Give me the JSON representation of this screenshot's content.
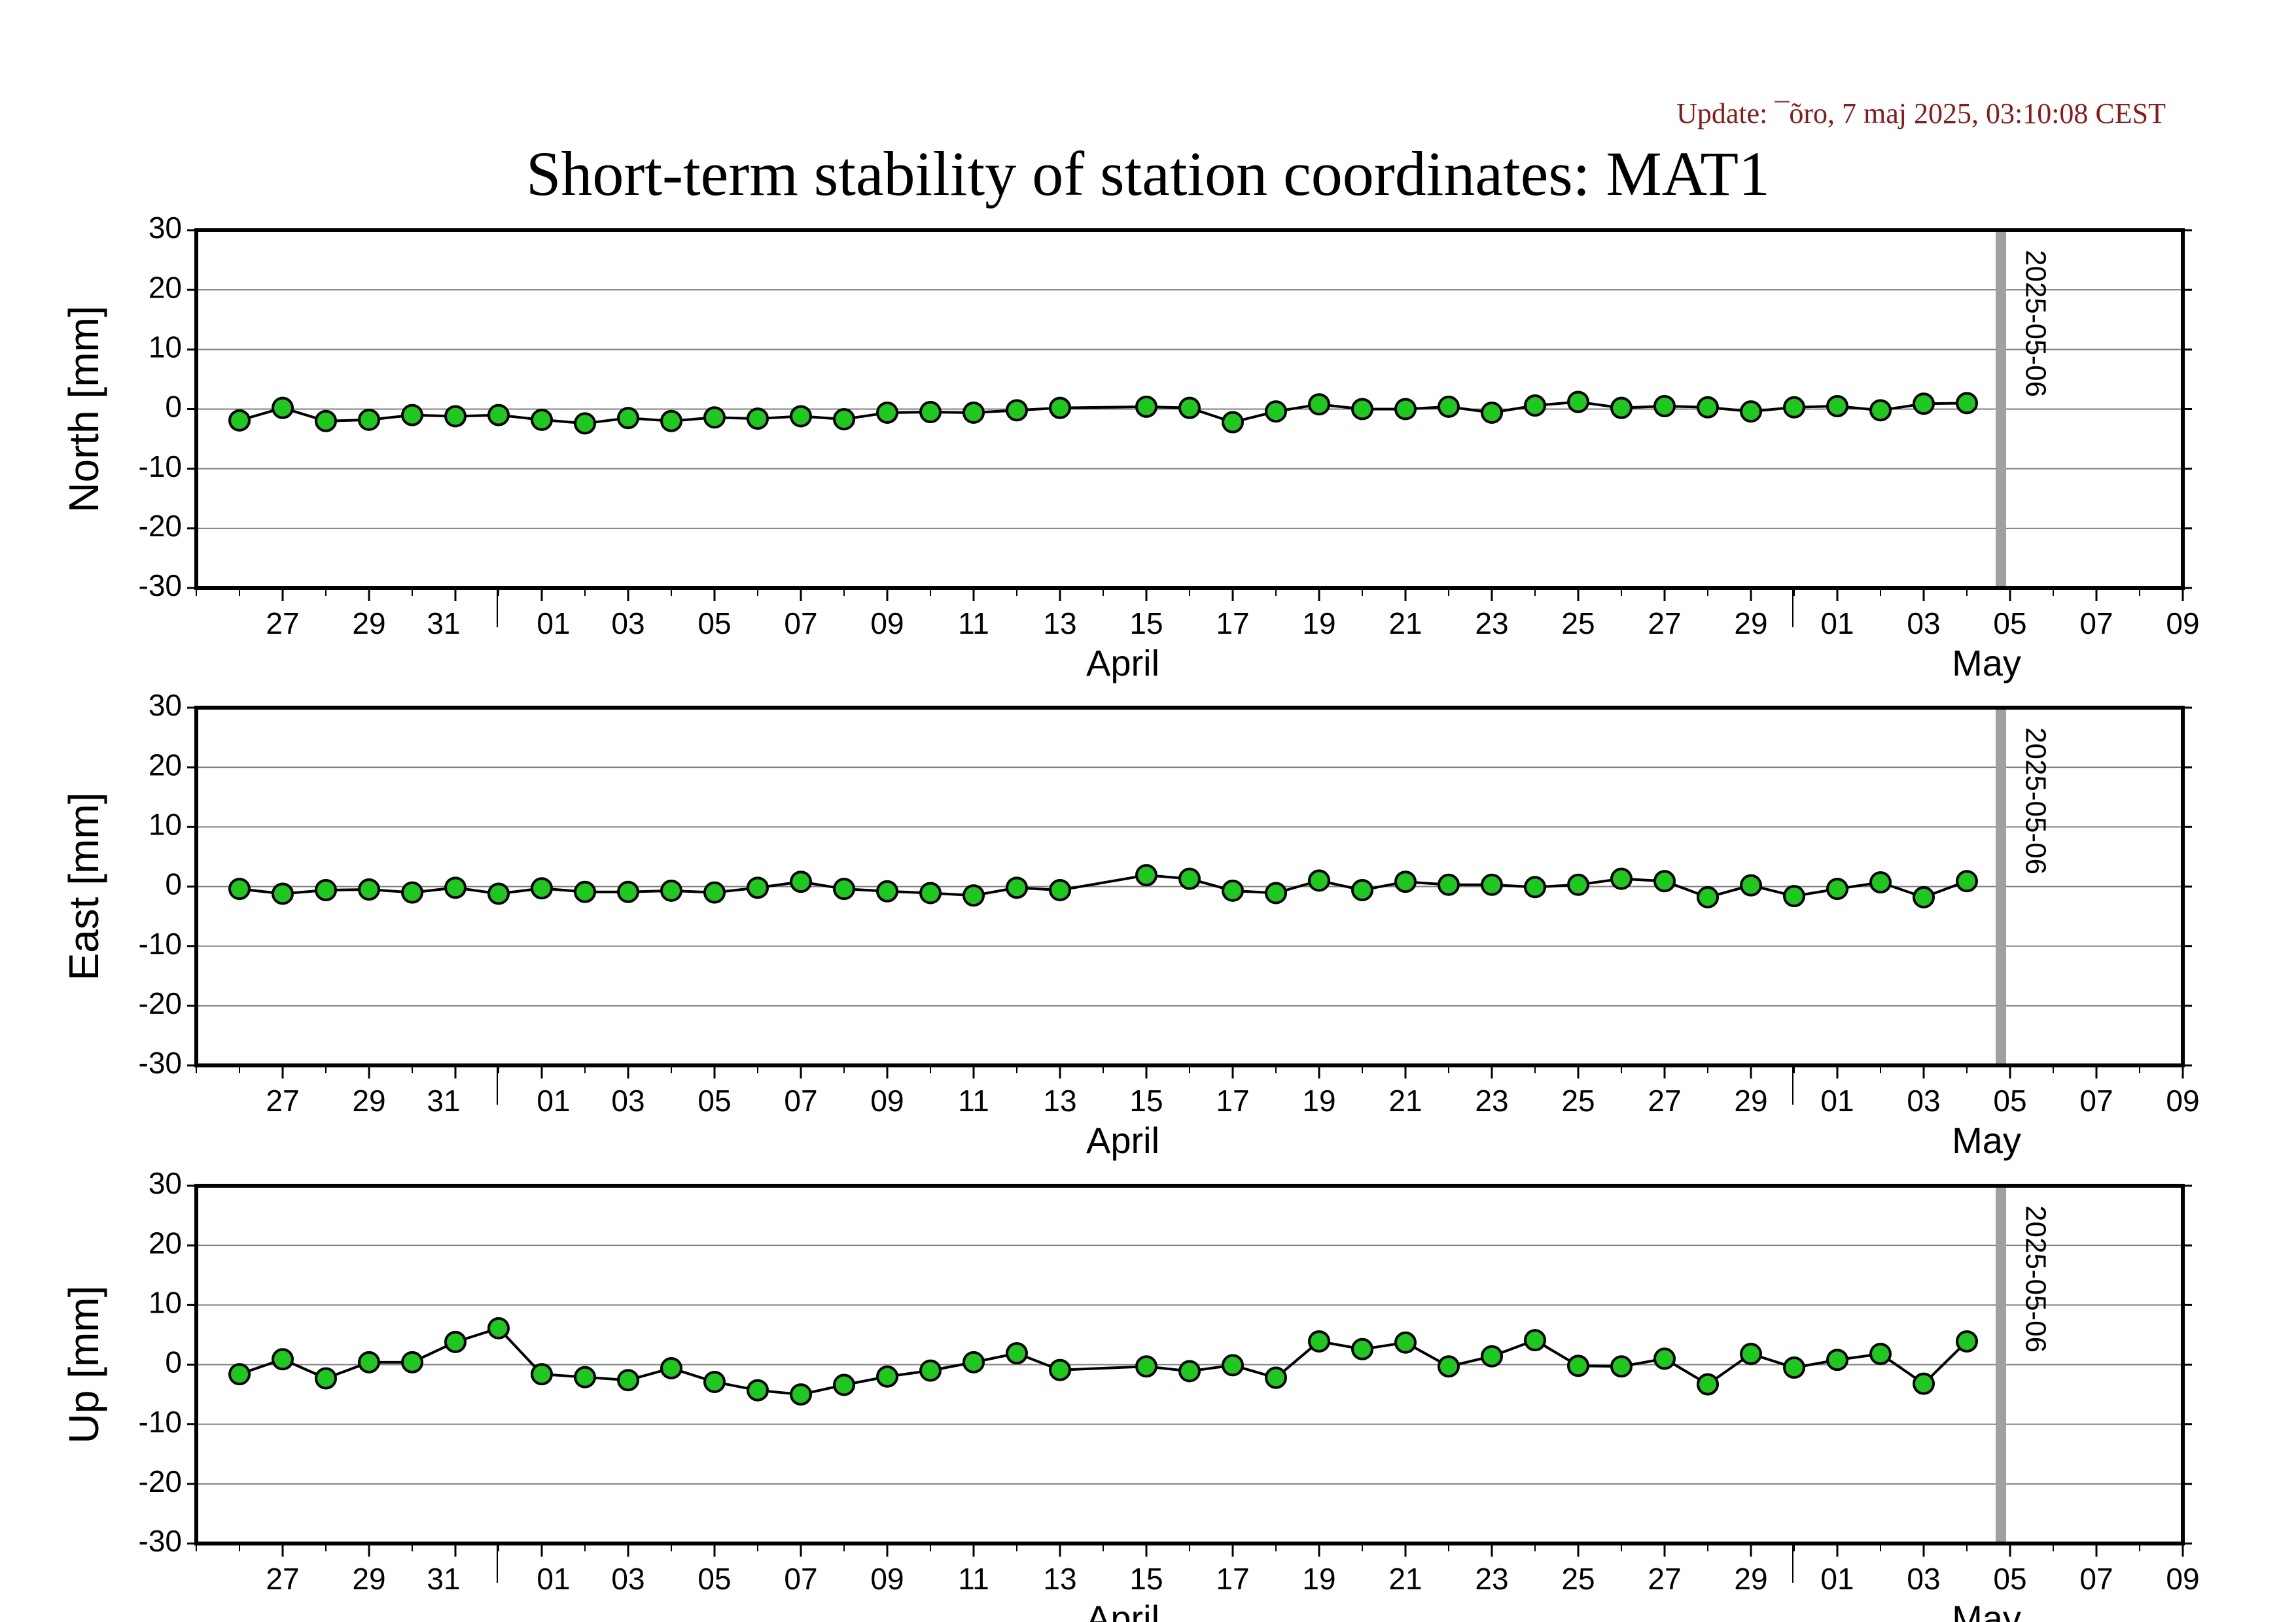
{
  "update_text": "Update: ¯õro, 7 maj 2025, 03:10:08 CEST",
  "chart_title": "Short-term stability of station coordinates: MAT1",
  "colors": {
    "marker_fill": "#1ec81e",
    "marker_edge": "#000000",
    "line": "#000000",
    "grid": "#7f7f7f",
    "epoch_line": "#a0a0a0",
    "update_text": "#8b1a1a"
  },
  "chart_data": [
    {
      "type": "line",
      "ylabel": "North [mm]",
      "ylim": [
        -30,
        30
      ],
      "yticks": [
        30,
        20,
        10,
        0,
        -10,
        -20,
        -30
      ],
      "xlim": [
        "2025-03-25",
        "2025-05-10"
      ],
      "x_tick_days": [
        "27",
        "29",
        "31",
        "01",
        "03",
        "05",
        "07",
        "09",
        "11",
        "13",
        "15",
        "17",
        "19",
        "21",
        "23",
        "25",
        "27",
        "29",
        "01",
        "03",
        "05",
        "07",
        "09"
      ],
      "month_labels": [
        "April",
        "May"
      ],
      "grid": "horizontal",
      "vertical_marker": {
        "date": "2025-05-06",
        "label": "2025-05-06"
      },
      "x": [
        "2025-03-26",
        "2025-03-27",
        "2025-03-28",
        "2025-03-29",
        "2025-03-30",
        "2025-03-31",
        "2025-04-01",
        "2025-04-02",
        "2025-04-03",
        "2025-04-04",
        "2025-04-05",
        "2025-04-06",
        "2025-04-07",
        "2025-04-08",
        "2025-04-09",
        "2025-04-10",
        "2025-04-11",
        "2025-04-12",
        "2025-04-13",
        "2025-04-14",
        "2025-04-16",
        "2025-04-17",
        "2025-04-18",
        "2025-04-19",
        "2025-04-20",
        "2025-04-21",
        "2025-04-22",
        "2025-04-23",
        "2025-04-24",
        "2025-04-25",
        "2025-04-26",
        "2025-04-27",
        "2025-04-28",
        "2025-04-29",
        "2025-04-30",
        "2025-05-01",
        "2025-05-02",
        "2025-05-03",
        "2025-05-04",
        "2025-05-05"
      ],
      "values": [
        -1.9,
        0.2,
        -2.0,
        -1.8,
        -1.0,
        -1.2,
        -1.0,
        -1.8,
        -2.4,
        -1.5,
        -2.0,
        -1.4,
        -1.6,
        -1.2,
        -1.7,
        -0.6,
        -0.5,
        -0.6,
        -0.2,
        0.2,
        0.4,
        0.2,
        -2.2,
        -0.4,
        0.8,
        0.0,
        0.0,
        0.4,
        -0.6,
        0.6,
        1.2,
        0.2,
        0.5,
        0.3,
        -0.4,
        0.3,
        0.5,
        -0.2,
        0.9,
        1.0
      ]
    },
    {
      "type": "line",
      "ylabel": "East [mm]",
      "ylim": [
        -30,
        30
      ],
      "yticks": [
        30,
        20,
        10,
        0,
        -10,
        -20,
        -30
      ],
      "xlim": [
        "2025-03-25",
        "2025-05-10"
      ],
      "x_tick_days": [
        "27",
        "29",
        "31",
        "01",
        "03",
        "05",
        "07",
        "09",
        "11",
        "13",
        "15",
        "17",
        "19",
        "21",
        "23",
        "25",
        "27",
        "29",
        "01",
        "03",
        "05",
        "07",
        "09"
      ],
      "month_labels": [
        "April",
        "May"
      ],
      "grid": "horizontal",
      "vertical_marker": {
        "date": "2025-05-06",
        "label": "2025-05-06"
      },
      "x": [
        "2025-03-26",
        "2025-03-27",
        "2025-03-28",
        "2025-03-29",
        "2025-03-30",
        "2025-03-31",
        "2025-04-01",
        "2025-04-02",
        "2025-04-03",
        "2025-04-04",
        "2025-04-05",
        "2025-04-06",
        "2025-04-07",
        "2025-04-08",
        "2025-04-09",
        "2025-04-10",
        "2025-04-11",
        "2025-04-12",
        "2025-04-13",
        "2025-04-14",
        "2025-04-16",
        "2025-04-17",
        "2025-04-18",
        "2025-04-19",
        "2025-04-20",
        "2025-04-21",
        "2025-04-22",
        "2025-04-23",
        "2025-04-24",
        "2025-04-25",
        "2025-04-26",
        "2025-04-27",
        "2025-04-28",
        "2025-04-29",
        "2025-04-30",
        "2025-05-01",
        "2025-05-02",
        "2025-05-03",
        "2025-05-04",
        "2025-05-05"
      ],
      "values": [
        -0.4,
        -1.2,
        -0.6,
        -0.5,
        -1.0,
        -0.2,
        -1.2,
        -0.3,
        -0.9,
        -0.9,
        -0.7,
        -1.0,
        -0.2,
        0.8,
        -0.4,
        -0.8,
        -1.1,
        -1.5,
        -0.2,
        -0.6,
        1.9,
        1.3,
        -0.7,
        -1.1,
        1.0,
        -0.6,
        0.8,
        0.3,
        0.3,
        -0.1,
        0.3,
        1.3,
        0.9,
        -1.8,
        0.2,
        -1.6,
        -0.4,
        0.7,
        -1.8,
        0.9
      ]
    },
    {
      "type": "line",
      "ylabel": "Up [mm]",
      "ylim": [
        -30,
        30
      ],
      "yticks": [
        30,
        20,
        10,
        0,
        -10,
        -20,
        -30
      ],
      "xlim": [
        "2025-03-25",
        "2025-05-10"
      ],
      "x_tick_days": [
        "27",
        "29",
        "31",
        "01",
        "03",
        "05",
        "07",
        "09",
        "11",
        "13",
        "15",
        "17",
        "19",
        "21",
        "23",
        "25",
        "27",
        "29",
        "01",
        "03",
        "05",
        "07",
        "09"
      ],
      "month_labels": [
        "April",
        "May"
      ],
      "grid": "horizontal",
      "vertical_marker": {
        "date": "2025-05-06",
        "label": "2025-05-06"
      },
      "x": [
        "2025-03-26",
        "2025-03-27",
        "2025-03-28",
        "2025-03-29",
        "2025-03-30",
        "2025-03-31",
        "2025-04-01",
        "2025-04-02",
        "2025-04-03",
        "2025-04-04",
        "2025-04-05",
        "2025-04-06",
        "2025-04-07",
        "2025-04-08",
        "2025-04-09",
        "2025-04-10",
        "2025-04-11",
        "2025-04-12",
        "2025-04-13",
        "2025-04-14",
        "2025-04-16",
        "2025-04-17",
        "2025-04-18",
        "2025-04-19",
        "2025-04-20",
        "2025-04-21",
        "2025-04-22",
        "2025-04-23",
        "2025-04-24",
        "2025-04-25",
        "2025-04-26",
        "2025-04-27",
        "2025-04-28",
        "2025-04-29",
        "2025-04-30",
        "2025-05-01",
        "2025-05-02",
        "2025-05-03",
        "2025-05-04",
        "2025-05-05"
      ],
      "values": [
        -1.6,
        0.9,
        -2.3,
        0.4,
        0.4,
        3.8,
        6.1,
        -1.6,
        -2.1,
        -2.6,
        -0.6,
        -2.9,
        -4.3,
        -5.0,
        -3.4,
        -2.0,
        -1.0,
        0.4,
        1.9,
        -0.9,
        -0.3,
        -1.1,
        -0.1,
        -2.2,
        3.9,
        2.6,
        3.7,
        -0.3,
        1.4,
        4.1,
        -0.2,
        -0.3,
        1.0,
        -3.3,
        1.8,
        -0.5,
        0.8,
        1.8,
        -3.2,
        3.9
      ]
    }
  ]
}
